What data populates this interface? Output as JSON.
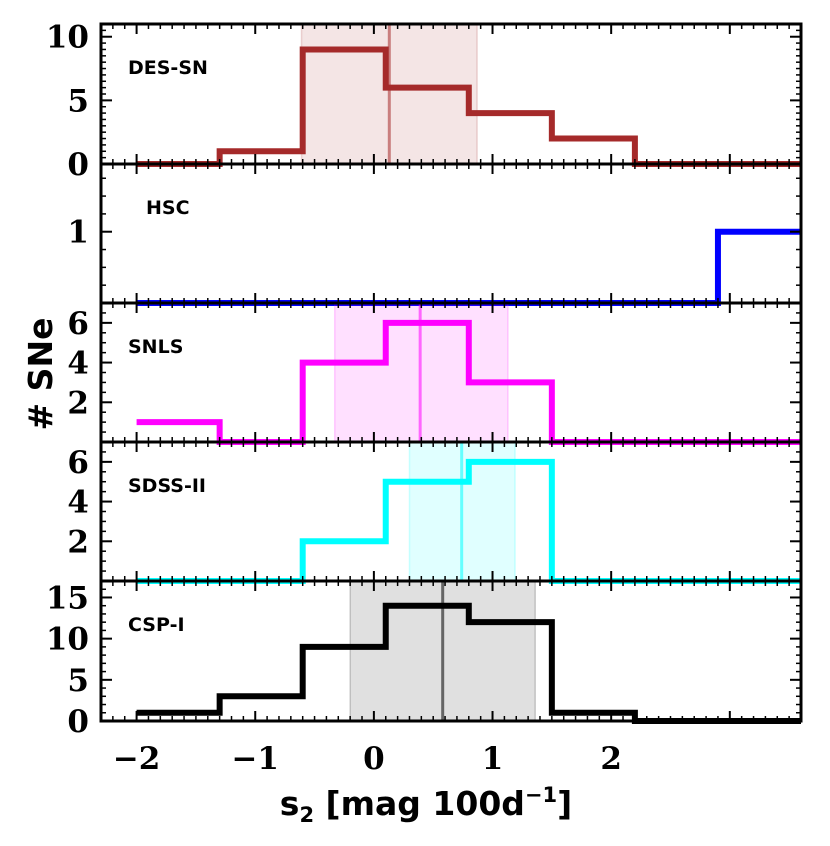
{
  "chart_data": {
    "type": "histogram",
    "xlabel_main": "s",
    "xlabel_sub": "2",
    "xlabel_unit": " [mag 100d",
    "xlabel_sup": "−1",
    "xlabel_close": "]",
    "ylabel": "# SNe",
    "xlim": [
      -2.3,
      3.6
    ],
    "x_ticks": [
      -2,
      -1,
      0,
      1,
      2
    ],
    "x_tick_labels": [
      "−2",
      "−1",
      "0",
      "1",
      "2"
    ],
    "bin_edges": [
      -2.0,
      -1.3,
      -0.6,
      0.1,
      0.8,
      1.5,
      2.2,
      2.9,
      3.6
    ],
    "panels": [
      {
        "name": "DES-SN",
        "color": "#a52a2a",
        "ylim": [
          0,
          11
        ],
        "y_ticks": [
          0,
          5,
          10
        ],
        "y_tick_labels": [
          "0",
          "5",
          "10"
        ],
        "counts": [
          0,
          1,
          9,
          6,
          4,
          2,
          0,
          0
        ],
        "median": 0.13,
        "band": [
          -0.61,
          0.87
        ]
      },
      {
        "name": "HSC",
        "color": "#0000ff",
        "ylim": [
          0,
          1.95
        ],
        "y_ticks": [
          1
        ],
        "y_tick_labels": [
          "1"
        ],
        "counts": [
          0,
          0,
          0,
          0,
          0,
          0,
          0,
          1
        ],
        "median": null,
        "band": null
      },
      {
        "name": "SNLS",
        "color": "#ff00ff",
        "ylim": [
          0,
          7
        ],
        "y_ticks": [
          2,
          4,
          6
        ],
        "y_tick_labels": [
          "2",
          "4",
          "6"
        ],
        "counts": [
          1,
          0,
          4,
          6,
          3,
          0,
          0,
          0
        ],
        "median": 0.39,
        "band": [
          -0.33,
          1.13
        ]
      },
      {
        "name": "SDSS-II",
        "color": "#00ffff",
        "ylim": [
          0,
          7
        ],
        "y_ticks": [
          2,
          4,
          6
        ],
        "y_tick_labels": [
          "2",
          "4",
          "6"
        ],
        "counts": [
          0,
          0,
          2,
          5,
          6,
          0,
          0,
          0
        ],
        "median": 0.74,
        "band": [
          0.3,
          1.19
        ]
      },
      {
        "name": "CSP-I",
        "color": "#000000",
        "ylim": [
          0,
          17
        ],
        "y_ticks": [
          0,
          5,
          10,
          15
        ],
        "y_tick_labels": [
          "0",
          "5",
          "10",
          "15"
        ],
        "counts": [
          1,
          3,
          9,
          14,
          12,
          1,
          0,
          0
        ],
        "median": 0.58,
        "band": [
          -0.2,
          1.36
        ]
      }
    ]
  }
}
